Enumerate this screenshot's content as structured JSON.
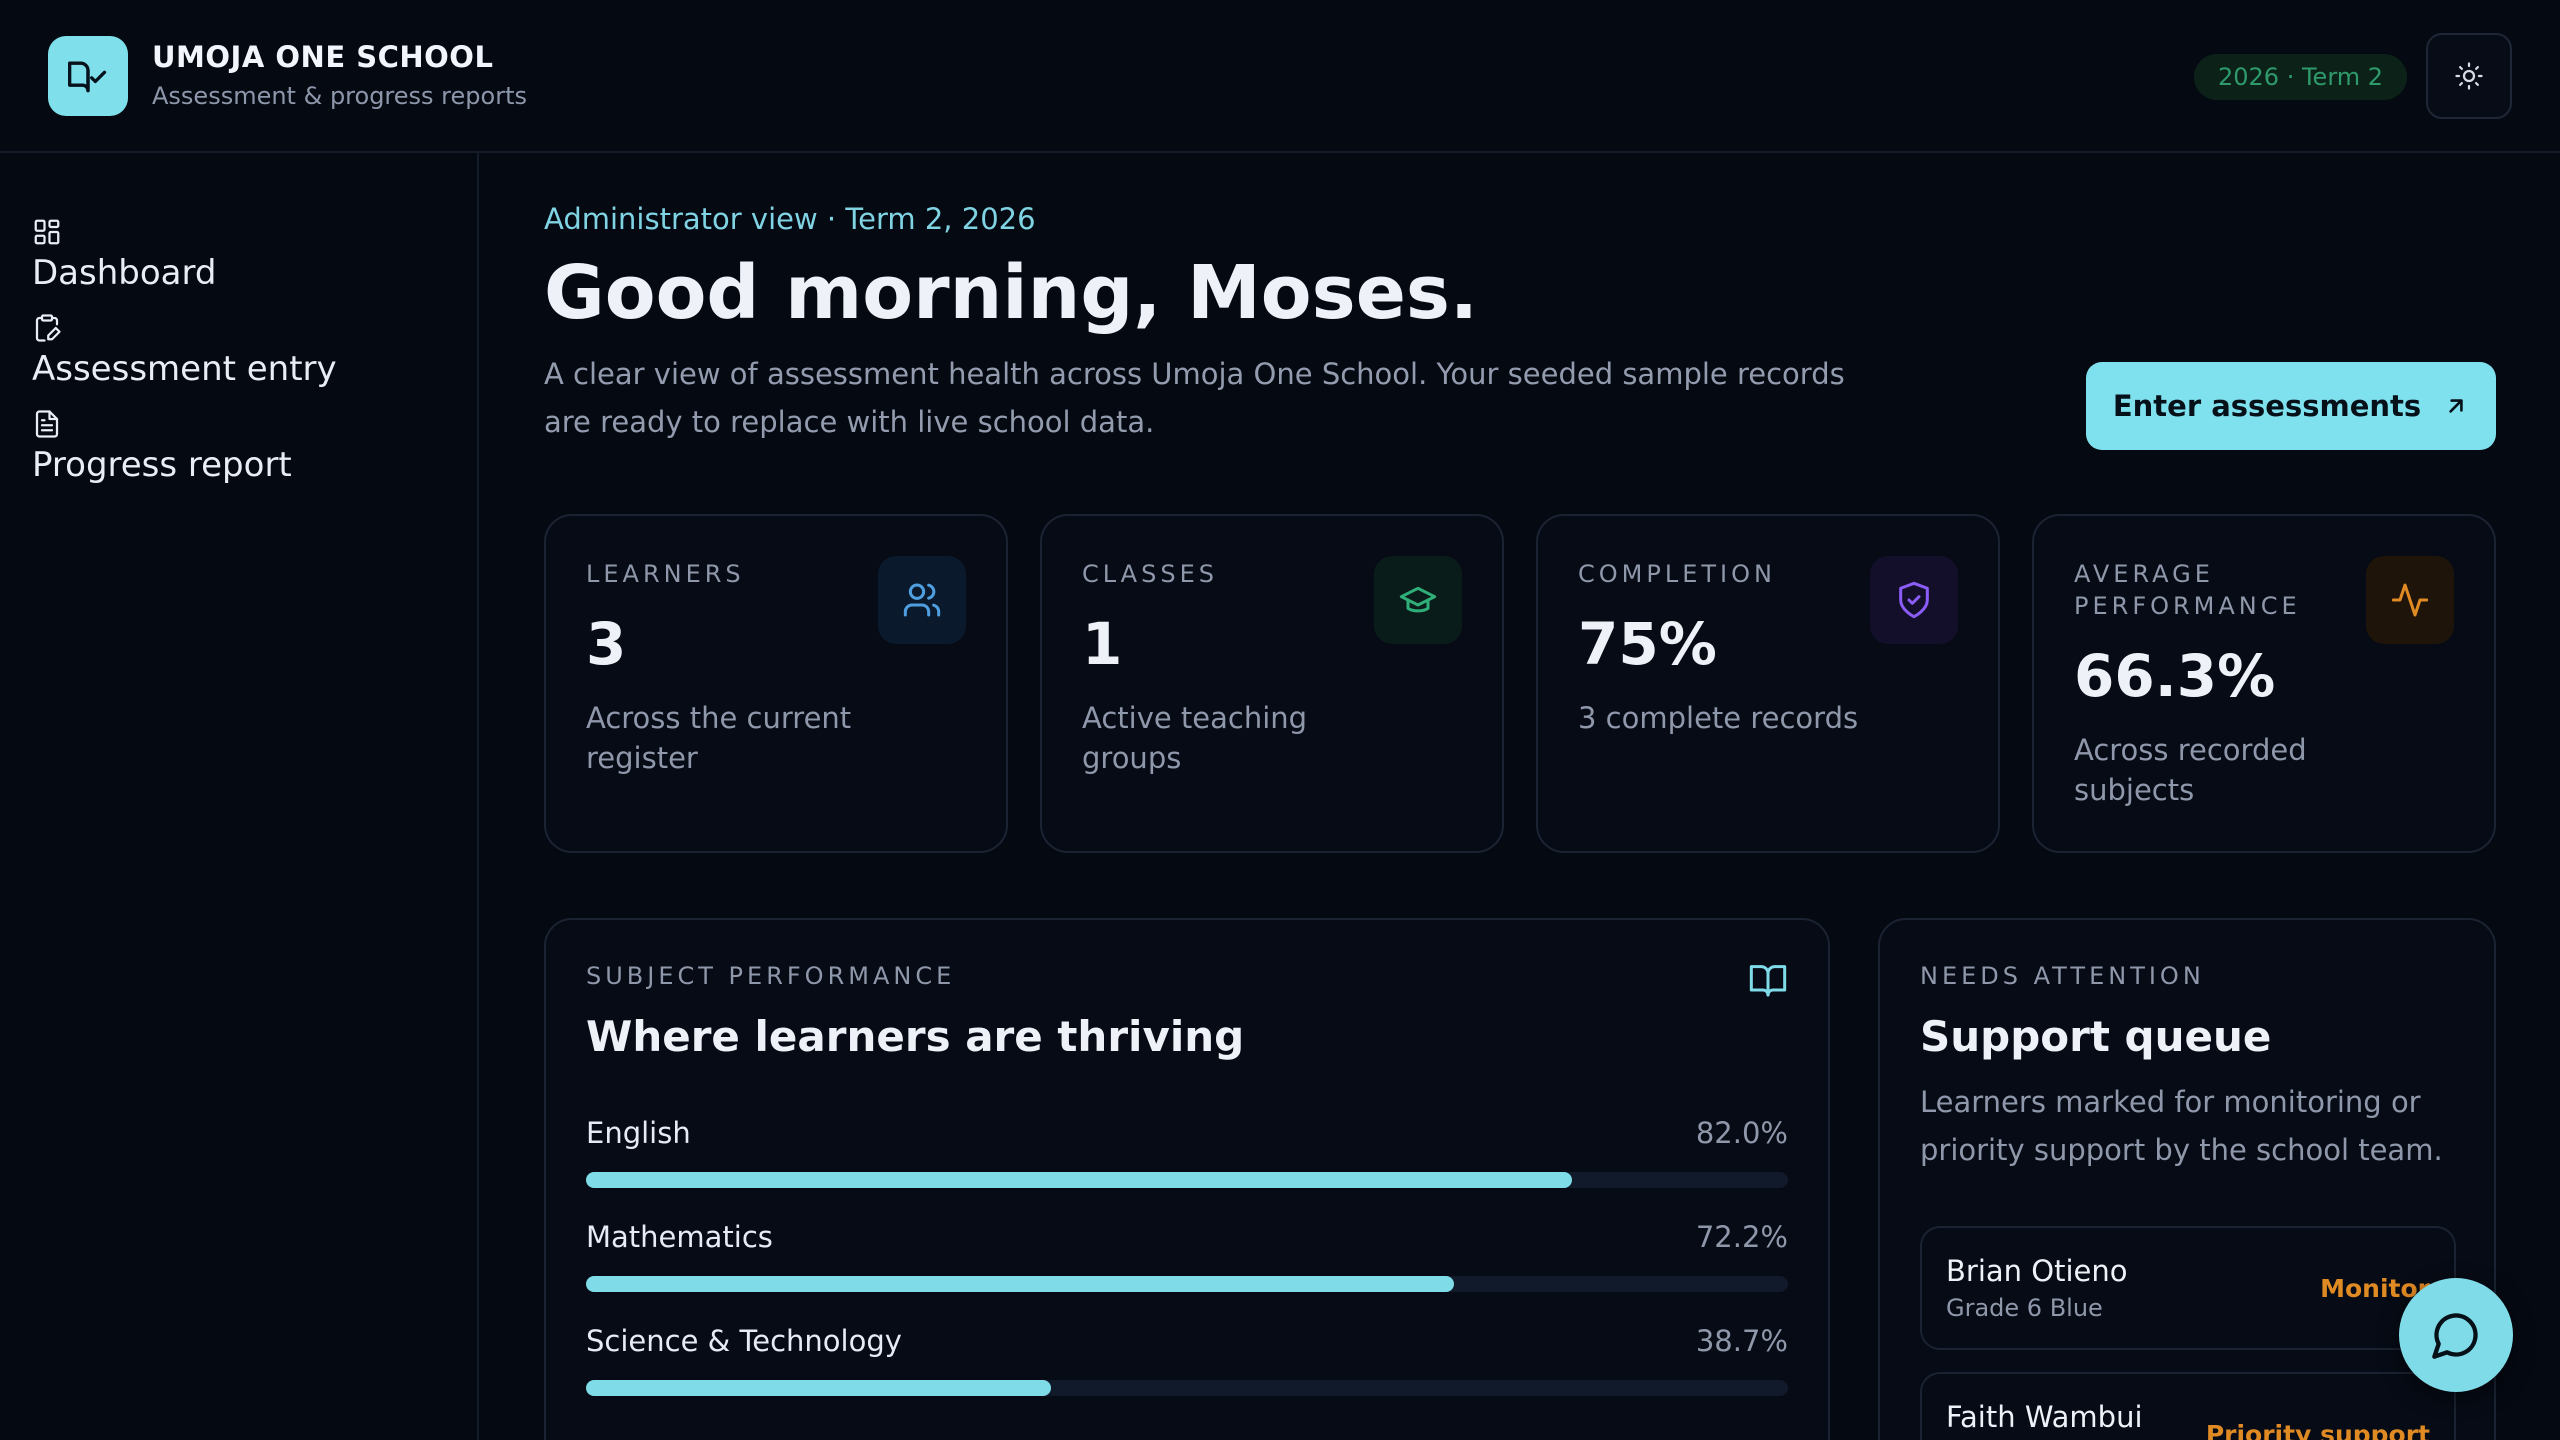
{
  "header": {
    "school_name": "UMOJA ONE SCHOOL",
    "school_subtitle": "Assessment & progress reports",
    "term_badge": "2026 · Term 2",
    "logo_icon": "book-check-icon",
    "theme_icon": "sun-icon"
  },
  "sidebar": {
    "items": [
      {
        "label": "Dashboard",
        "icon": "grid-icon"
      },
      {
        "label": "Assessment entry",
        "icon": "clipboard-edit-icon"
      },
      {
        "label": "Progress report",
        "icon": "document-icon"
      }
    ]
  },
  "main": {
    "eyebrow": "Administrator view · Term 2, 2026",
    "greeting": "Good morning, Moses.",
    "intro": "A clear view of assessment health across Umoja One School. Your seeded sample records are ready to replace with live school data.",
    "cta_label": "Enter assessments",
    "cta_icon": "arrow-up-right-icon"
  },
  "stats": [
    {
      "label": "LEARNERS",
      "value": "3",
      "desc": "Across the current register",
      "icon": "users-icon",
      "color": "#4f9fe0"
    },
    {
      "label": "CLASSES",
      "value": "1",
      "desc": "Active teaching groups",
      "icon": "graduation-cap-icon",
      "color": "#2fae7a"
    },
    {
      "label": "COMPLETION",
      "value": "75%",
      "desc": "3 complete records",
      "icon": "shield-check-icon",
      "color": "#8b5cf6"
    },
    {
      "label": "AVERAGE PERFORMANCE",
      "value": "66.3%",
      "desc": "Across recorded subjects",
      "icon": "activity-icon",
      "color": "#e08a24"
    }
  ],
  "subject_panel": {
    "eyebrow": "SUBJECT PERFORMANCE",
    "title": "Where learners are thriving",
    "icon": "open-book-icon",
    "subjects": [
      {
        "name": "English",
        "pct_label": "82.0%",
        "pct": 82.0
      },
      {
        "name": "Mathematics",
        "pct_label": "72.2%",
        "pct": 72.2
      },
      {
        "name": "Science & Technology",
        "pct_label": "38.7%",
        "pct": 38.7
      }
    ]
  },
  "attention_panel": {
    "eyebrow": "NEEDS ATTENTION",
    "title": "Support queue",
    "desc": "Learners marked for monitoring or priority support by the school team.",
    "learners": [
      {
        "name": "Brian Otieno",
        "class": "Grade 6 Blue",
        "status": "Monitor"
      },
      {
        "name": "Faith Wambui",
        "class": "",
        "status": "Priority support"
      }
    ]
  },
  "chat": {
    "icon": "chat-bubble-icon"
  },
  "colors": {
    "accent": "#7fdbe8",
    "background": "#050912",
    "warning": "#e08a24"
  }
}
